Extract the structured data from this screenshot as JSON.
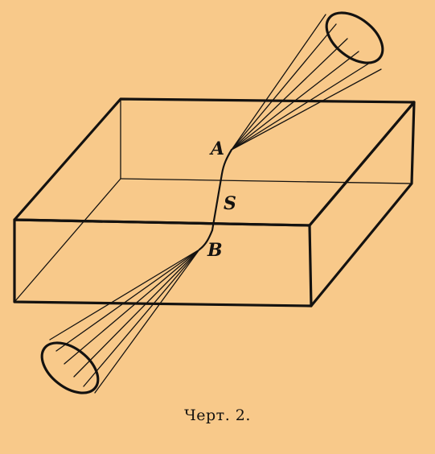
{
  "figure": {
    "labels": {
      "point_a": "A",
      "segment_s": "S",
      "point_b": "B"
    },
    "caption": "Черт. 2."
  },
  "colors": {
    "background": "#f8c98a",
    "ink": "#141210"
  }
}
